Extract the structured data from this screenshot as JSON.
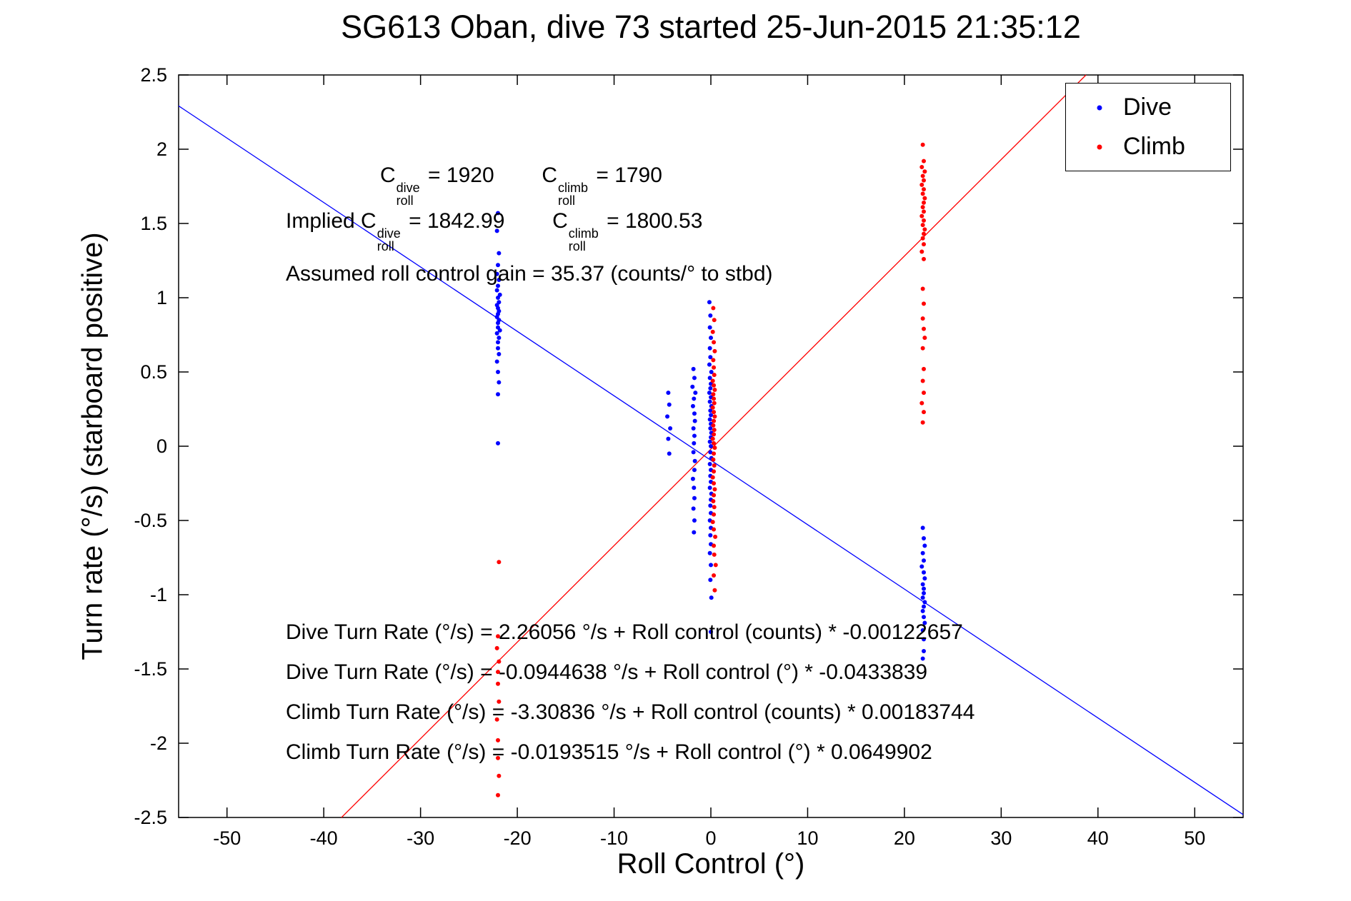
{
  "chart_data": {
    "type": "scatter",
    "title": "SG613 Oban, dive 73 started 25-Jun-2015 21:35:12",
    "xlabel": "Roll Control (°)",
    "ylabel": "Turn rate (°/s) (starboard positive)",
    "xlim": [
      -55,
      55
    ],
    "ylim": [
      -2.5,
      2.5
    ],
    "xticks": [
      -50,
      -40,
      -30,
      -20,
      -10,
      0,
      10,
      20,
      30,
      40,
      50
    ],
    "yticks": [
      -2.5,
      -2,
      -1.5,
      -1,
      -0.5,
      0,
      0.5,
      1,
      1.5,
      2,
      2.5
    ],
    "grid": false,
    "legend": {
      "position": "northeast",
      "entries": [
        {
          "label": "Dive",
          "color": "#0000ff"
        },
        {
          "label": "Climb",
          "color": "#ff0000"
        }
      ]
    },
    "series": [
      {
        "name": "Dive",
        "color": "#0000ff",
        "marker": "point",
        "points": [
          [
            -22.0,
            1.57
          ],
          [
            -22.1,
            1.45
          ],
          [
            -21.9,
            1.3
          ],
          [
            -22.0,
            1.22
          ],
          [
            -22.1,
            1.16
          ],
          [
            -21.9,
            1.12
          ],
          [
            -22.0,
            1.08
          ],
          [
            -22.1,
            1.05
          ],
          [
            -21.8,
            1.02
          ],
          [
            -22.0,
            1.0
          ],
          [
            -21.9,
            0.97
          ],
          [
            -22.1,
            0.95
          ],
          [
            -22.0,
            0.93
          ],
          [
            -21.9,
            0.91
          ],
          [
            -22.0,
            0.89
          ],
          [
            -22.1,
            0.87
          ],
          [
            -21.9,
            0.85
          ],
          [
            -22.0,
            0.83
          ],
          [
            -22.0,
            0.8
          ],
          [
            -21.8,
            0.78
          ],
          [
            -22.1,
            0.76
          ],
          [
            -21.9,
            0.73
          ],
          [
            -22.0,
            0.7
          ],
          [
            -22.0,
            0.66
          ],
          [
            -21.9,
            0.62
          ],
          [
            -22.1,
            0.57
          ],
          [
            -22.0,
            0.5
          ],
          [
            -21.9,
            0.43
          ],
          [
            -22.0,
            0.35
          ],
          [
            -22.0,
            0.02
          ],
          [
            -4.4,
            0.36
          ],
          [
            -4.3,
            0.28
          ],
          [
            -4.5,
            0.2
          ],
          [
            -4.2,
            0.12
          ],
          [
            -4.4,
            0.05
          ],
          [
            -4.3,
            -0.05
          ],
          [
            -1.8,
            0.52
          ],
          [
            -1.7,
            0.46
          ],
          [
            -1.9,
            0.4
          ],
          [
            -1.6,
            0.36
          ],
          [
            -1.75,
            0.32
          ],
          [
            -1.85,
            0.27
          ],
          [
            -1.7,
            0.22
          ],
          [
            -1.65,
            0.17
          ],
          [
            -1.8,
            0.12
          ],
          [
            -1.7,
            0.07
          ],
          [
            -1.75,
            0.02
          ],
          [
            -1.8,
            -0.04
          ],
          [
            -1.65,
            -0.1
          ],
          [
            -1.7,
            -0.16
          ],
          [
            -1.85,
            -0.22
          ],
          [
            -1.75,
            -0.28
          ],
          [
            -1.7,
            -0.35
          ],
          [
            -1.8,
            -0.42
          ],
          [
            -1.7,
            -0.5
          ],
          [
            -1.75,
            -0.58
          ],
          [
            -0.15,
            0.97
          ],
          [
            -0.05,
            0.88
          ],
          [
            -0.1,
            0.8
          ],
          [
            0.0,
            0.73
          ],
          [
            -0.1,
            0.66
          ],
          [
            -0.05,
            0.6
          ],
          [
            -0.15,
            0.55
          ],
          [
            0.05,
            0.5
          ],
          [
            -0.1,
            0.46
          ],
          [
            0.0,
            0.42
          ],
          [
            -0.05,
            0.39
          ],
          [
            -0.15,
            0.36
          ],
          [
            0.0,
            0.33
          ],
          [
            -0.1,
            0.3
          ],
          [
            0.05,
            0.27
          ],
          [
            -0.05,
            0.24
          ],
          [
            0.0,
            0.21
          ],
          [
            -0.1,
            0.18
          ],
          [
            0.0,
            0.15
          ],
          [
            -0.05,
            0.12
          ],
          [
            0.05,
            0.09
          ],
          [
            0.0,
            0.06
          ],
          [
            -0.1,
            0.03
          ],
          [
            0.0,
            0.0
          ],
          [
            -0.05,
            -0.04
          ],
          [
            0.05,
            -0.08
          ],
          [
            -0.1,
            -0.12
          ],
          [
            0.0,
            -0.16
          ],
          [
            -0.05,
            -0.2
          ],
          [
            0.0,
            -0.24
          ],
          [
            -0.1,
            -0.28
          ],
          [
            0.05,
            -0.32
          ],
          [
            0.0,
            -0.36
          ],
          [
            -0.05,
            -0.4
          ],
          [
            0.0,
            -0.45
          ],
          [
            -0.1,
            -0.5
          ],
          [
            0.0,
            -0.55
          ],
          [
            -0.05,
            -0.6
          ],
          [
            0.0,
            -0.66
          ],
          [
            -0.1,
            -0.72
          ],
          [
            0.0,
            -0.8
          ],
          [
            -0.05,
            -0.9
          ],
          [
            0.05,
            -1.02
          ],
          [
            0.0,
            -1.25
          ],
          [
            21.9,
            -0.55
          ],
          [
            22.0,
            -0.62
          ],
          [
            22.1,
            -0.67
          ],
          [
            21.9,
            -0.72
          ],
          [
            22.0,
            -0.77
          ],
          [
            21.8,
            -0.81
          ],
          [
            22.0,
            -0.85
          ],
          [
            22.1,
            -0.89
          ],
          [
            21.9,
            -0.93
          ],
          [
            22.0,
            -0.96
          ],
          [
            22.0,
            -0.99
          ],
          [
            21.9,
            -1.02
          ],
          [
            22.1,
            -1.05
          ],
          [
            22.0,
            -1.08
          ],
          [
            21.9,
            -1.11
          ],
          [
            22.0,
            -1.15
          ],
          [
            22.1,
            -1.19
          ],
          [
            21.9,
            -1.24
          ],
          [
            22.0,
            -1.3
          ],
          [
            22.0,
            -1.38
          ],
          [
            21.9,
            -1.43
          ]
        ]
      },
      {
        "name": "Climb",
        "color": "#ff0000",
        "marker": "point",
        "points": [
          [
            -21.9,
            -0.78
          ],
          [
            -22.0,
            -1.28
          ],
          [
            -22.1,
            -1.36
          ],
          [
            -21.9,
            -1.45
          ],
          [
            -22.0,
            -1.52
          ],
          [
            -22.0,
            -1.6
          ],
          [
            -21.9,
            -1.72
          ],
          [
            -22.1,
            -1.84
          ],
          [
            -22.0,
            -1.98
          ],
          [
            -22.0,
            -2.1
          ],
          [
            -21.9,
            -2.22
          ],
          [
            -22.0,
            -2.35
          ],
          [
            0.25,
            0.93
          ],
          [
            0.35,
            0.85
          ],
          [
            0.2,
            0.77
          ],
          [
            0.3,
            0.7
          ],
          [
            0.4,
            0.64
          ],
          [
            0.25,
            0.58
          ],
          [
            0.3,
            0.53
          ],
          [
            0.35,
            0.48
          ],
          [
            0.2,
            0.44
          ],
          [
            0.3,
            0.41
          ],
          [
            0.4,
            0.38
          ],
          [
            0.25,
            0.35
          ],
          [
            0.3,
            0.32
          ],
          [
            0.35,
            0.29
          ],
          [
            0.2,
            0.26
          ],
          [
            0.3,
            0.23
          ],
          [
            0.4,
            0.2
          ],
          [
            0.3,
            0.17
          ],
          [
            0.25,
            0.14
          ],
          [
            0.35,
            0.11
          ],
          [
            0.3,
            0.08
          ],
          [
            0.2,
            0.05
          ],
          [
            0.3,
            0.02
          ],
          [
            0.4,
            -0.01
          ],
          [
            0.3,
            -0.05
          ],
          [
            0.25,
            -0.09
          ],
          [
            0.35,
            -0.13
          ],
          [
            0.3,
            -0.17
          ],
          [
            0.2,
            -0.21
          ],
          [
            0.3,
            -0.25
          ],
          [
            0.4,
            -0.29
          ],
          [
            0.3,
            -0.33
          ],
          [
            0.25,
            -0.37
          ],
          [
            0.35,
            -0.41
          ],
          [
            0.3,
            -0.46
          ],
          [
            0.2,
            -0.51
          ],
          [
            0.3,
            -0.56
          ],
          [
            0.45,
            -0.61
          ],
          [
            0.3,
            -0.67
          ],
          [
            0.35,
            -0.73
          ],
          [
            0.5,
            -0.8
          ],
          [
            0.3,
            -0.87
          ],
          [
            0.4,
            -0.97
          ],
          [
            21.9,
            2.03
          ],
          [
            22.0,
            1.92
          ],
          [
            21.8,
            1.88
          ],
          [
            22.1,
            1.85
          ],
          [
            21.9,
            1.82
          ],
          [
            22.0,
            1.79
          ],
          [
            21.8,
            1.76
          ],
          [
            22.0,
            1.73
          ],
          [
            21.9,
            1.7
          ],
          [
            22.1,
            1.67
          ],
          [
            22.0,
            1.64
          ],
          [
            21.9,
            1.61
          ],
          [
            22.0,
            1.58
          ],
          [
            21.8,
            1.55
          ],
          [
            22.0,
            1.52
          ],
          [
            21.9,
            1.49
          ],
          [
            22.1,
            1.46
          ],
          [
            22.0,
            1.43
          ],
          [
            21.9,
            1.4
          ],
          [
            22.0,
            1.36
          ],
          [
            21.8,
            1.31
          ],
          [
            22.0,
            1.26
          ],
          [
            21.9,
            1.06
          ],
          [
            22.0,
            0.96
          ],
          [
            21.9,
            0.86
          ],
          [
            22.0,
            0.79
          ],
          [
            22.1,
            0.73
          ],
          [
            21.9,
            0.66
          ],
          [
            22.0,
            0.52
          ],
          [
            21.9,
            0.44
          ],
          [
            22.0,
            0.36
          ],
          [
            21.8,
            0.29
          ],
          [
            22.0,
            0.23
          ],
          [
            21.9,
            0.16
          ]
        ]
      }
    ],
    "fit_lines": [
      {
        "name": "dive-fit-line",
        "color": "#0000ff",
        "slope": -0.0433839,
        "intercept": -0.0944638
      },
      {
        "name": "climb-fit-line",
        "color": "#ff0000",
        "slope": 0.0649902,
        "intercept": -0.0193515
      }
    ],
    "annotations": {
      "calib_line1": [
        {
          "text": "C"
        },
        {
          "stack": [
            "dive",
            "roll"
          ]
        },
        {
          "text": " = 1920        "
        },
        {
          "text": "C"
        },
        {
          "stack": [
            "climb",
            "roll"
          ]
        },
        {
          "text": " = 1790"
        }
      ],
      "calib_line2": [
        {
          "text": "Implied C"
        },
        {
          "stack": [
            "dive",
            "roll"
          ]
        },
        {
          "text": " = 1842.99        "
        },
        {
          "text": "C"
        },
        {
          "stack": [
            "climb",
            "roll"
          ]
        },
        {
          "text": " = 1800.53"
        }
      ],
      "gain_line": [
        {
          "text": "Assumed roll control gain = 35.37 (counts/° to stbd)"
        }
      ],
      "eq1": [
        {
          "text": "Dive Turn Rate (°/s) = 2.26056 °/s + Roll control (counts) * -0.00122657"
        }
      ],
      "eq2": [
        {
          "text": "Dive Turn Rate (°/s) = -0.0944638 °/s + Roll control (°) * -0.0433839"
        }
      ],
      "eq3": [
        {
          "text": "Climb Turn Rate (°/s) = -3.30836 °/s + Roll control (counts) * 0.00183744"
        }
      ],
      "eq4": [
        {
          "text": "Climb Turn Rate (°/s) = -0.0193515 °/s + Roll control (°) * 0.0649902"
        }
      ]
    }
  }
}
